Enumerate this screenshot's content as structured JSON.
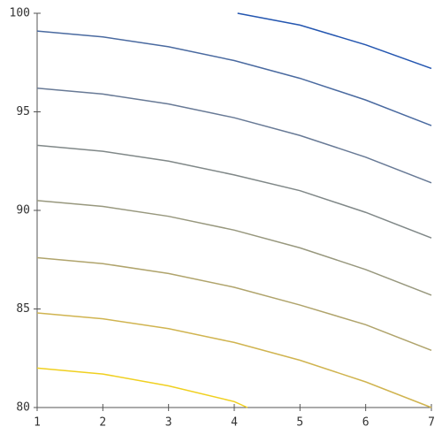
{
  "chart_data": {
    "type": "line",
    "xlim": [
      1,
      7
    ],
    "ylim": [
      80,
      100
    ],
    "xticks": [
      1,
      2,
      3,
      4,
      5,
      6,
      7
    ],
    "yticks": [
      80,
      85,
      90,
      95,
      100
    ],
    "series": [
      {
        "color": "#2456b0",
        "x": [
          4.05,
          5,
          6,
          7
        ],
        "values": [
          100,
          99.4,
          98.4,
          97.2
        ]
      },
      {
        "color": "#4a6aa0",
        "x": [
          1,
          2,
          3,
          4,
          5,
          6,
          7
        ],
        "values": [
          99.1,
          98.8,
          98.3,
          97.6,
          96.7,
          95.6,
          94.3
        ]
      },
      {
        "color": "#687a96",
        "x": [
          1,
          2,
          3,
          4,
          5,
          6,
          7
        ],
        "values": [
          96.2,
          95.9,
          95.4,
          94.7,
          93.8,
          92.7,
          91.4
        ]
      },
      {
        "color": "#808888",
        "x": [
          1,
          2,
          3,
          4,
          5,
          6,
          7
        ],
        "values": [
          93.3,
          93.0,
          92.5,
          91.8,
          91.0,
          89.9,
          88.6
        ]
      },
      {
        "color": "#98987e",
        "x": [
          1,
          2,
          3,
          4,
          5,
          6,
          7
        ],
        "values": [
          90.5,
          90.2,
          89.7,
          89.0,
          88.1,
          87.0,
          85.7
        ]
      },
      {
        "color": "#b0a46c",
        "x": [
          1,
          2,
          3,
          4,
          5,
          6,
          7
        ],
        "values": [
          87.6,
          87.3,
          86.8,
          86.1,
          85.2,
          84.2,
          82.9
        ]
      },
      {
        "color": "#d0b450",
        "x": [
          1,
          2,
          3,
          4,
          5,
          6,
          7
        ],
        "values": [
          84.8,
          84.5,
          84.0,
          83.3,
          82.4,
          81.3,
          80.0
        ]
      },
      {
        "color": "#f0d020",
        "x": [
          1,
          2,
          3,
          4,
          4.2
        ],
        "values": [
          82.0,
          81.7,
          81.1,
          80.3,
          80.0
        ]
      }
    ]
  }
}
